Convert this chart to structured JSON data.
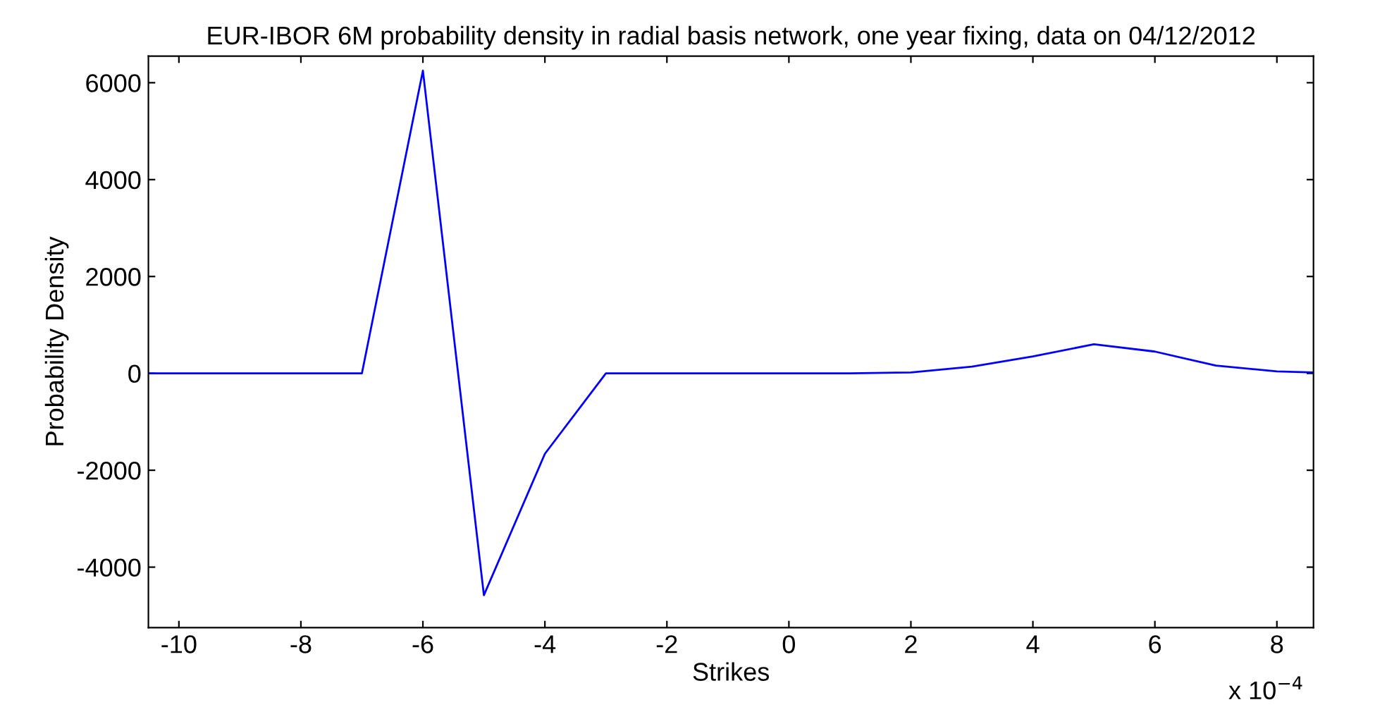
{
  "chart_data": {
    "type": "line",
    "title": "EUR-IBOR 6M probability density in radial basis network, one year fixing, data on 04/12/2012",
    "xlabel": "Strikes",
    "ylabel": "Probability Density",
    "annotations": [
      "x 10$^{−4}$"
    ],
    "x": [
      -10.5,
      -10,
      -9,
      -8,
      -7,
      -6,
      -5,
      -4,
      -3,
      -2,
      -1,
      0,
      1,
      2,
      3,
      4,
      5,
      6,
      7,
      8,
      8.6
    ],
    "series": [
      {
        "color": "#0000ff",
        "values": [
          0,
          0,
          0,
          0,
          0,
          6250,
          -4580,
          -1660,
          0,
          0,
          0,
          0,
          0,
          20,
          140,
          350,
          600,
          450,
          160,
          40,
          20
        ]
      }
    ],
    "xlim": [
      -10.5,
      8.6
    ],
    "xticks": [
      -10,
      -8,
      -6,
      -4,
      -2,
      0,
      2,
      4,
      6,
      8
    ],
    "ylim": [
      -5250,
      6550
    ],
    "yticks": [
      -4000,
      -2000,
      0,
      2000,
      4000,
      6000
    ],
    "grid": false,
    "legend": false,
    "marker": "none",
    "line_style": "solid"
  }
}
